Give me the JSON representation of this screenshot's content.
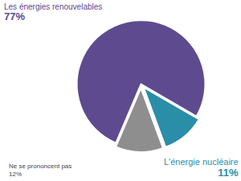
{
  "chart_data": {
    "type": "pie",
    "categories": [
      "Les énergies renouvelables",
      "L'énergie nucléaire",
      "Ne se prononcent pas"
    ],
    "values": [
      77,
      11,
      12
    ],
    "value_labels": [
      "77%",
      "11%",
      "12%"
    ],
    "colors": [
      "#5e4a8f",
      "#2a8ea8",
      "#8e8e8e"
    ],
    "data_labels": true,
    "legend": false
  }
}
